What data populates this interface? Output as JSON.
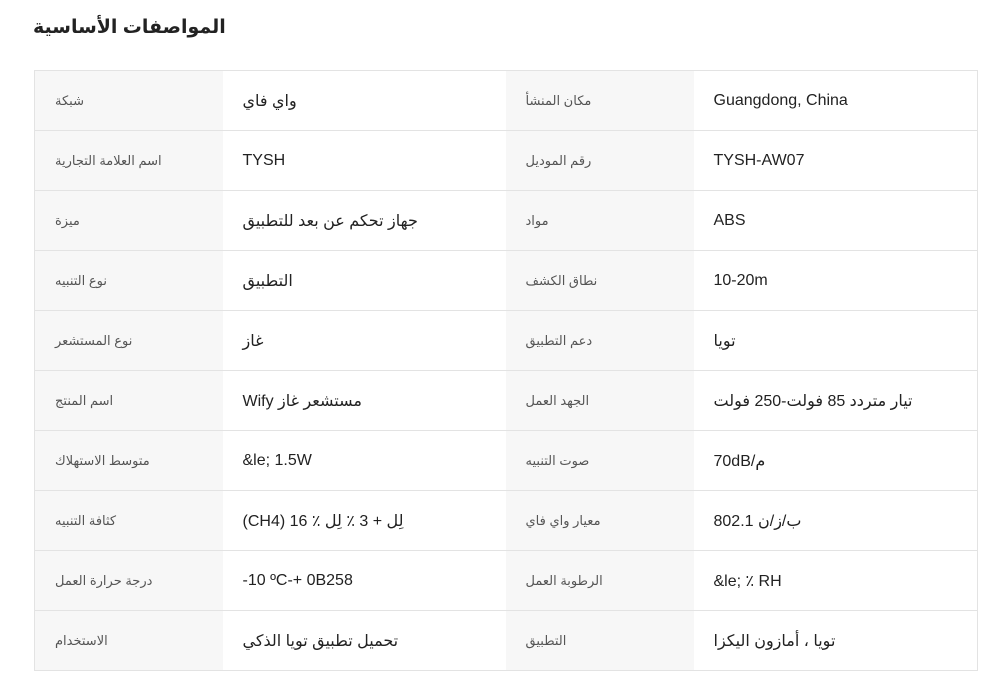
{
  "title": "المواصفات الأساسية",
  "rows": [
    {
      "label1": "شبكة",
      "value1": "واي فاي",
      "label2": "مكان المنشأ",
      "value2": "Guangdong, China"
    },
    {
      "label1": "اسم العلامة التجارية",
      "value1": "TYSH",
      "label2": "رقم الموديل",
      "value2": "TYSH-AW07"
    },
    {
      "label1": "ميزة",
      "value1": "جهاز تحكم عن بعد للتطبيق",
      "label2": "مواد",
      "value2": "ABS"
    },
    {
      "label1": "نوع التنبيه",
      "value1": "التطبيق",
      "label2": "نطاق الكشف",
      "value2": "10-20m"
    },
    {
      "label1": "نوع المستشعر",
      "value1": "غاز",
      "label2": "دعم التطبيق",
      "value2": "تويا"
    },
    {
      "label1": "اسم المنتج",
      "value1": "مستشعر غاز Wify",
      "label2": "الجهد العمل",
      "value2": "تيار متردد 85 فولت-250 فولت"
    },
    {
      "label1": "متوسط الاستهلاك",
      "value1": "&le; 1.5W",
      "label2": "صوت التنبيه",
      "value2": "70dB/م"
    },
    {
      "label1": "كثافة التنبيه",
      "value1": "(CH4) لِل + 3 ٪ لِل ٪ 16",
      "label2": "معيار واي فاي",
      "value2": "ب/ز/ن 802.1"
    },
    {
      "label1": "درجة حرارة العمل",
      "value1": "-10 ºC-+ 0B258",
      "label2": "الرطوبة العمل",
      "value2": "&le; ٪ RH"
    },
    {
      "label1": "الاستخدام",
      "value1": "تحميل تطبيق تويا الذكي",
      "label2": "التطبيق",
      "value2": "تويا ، أمازون اليكزا"
    }
  ]
}
